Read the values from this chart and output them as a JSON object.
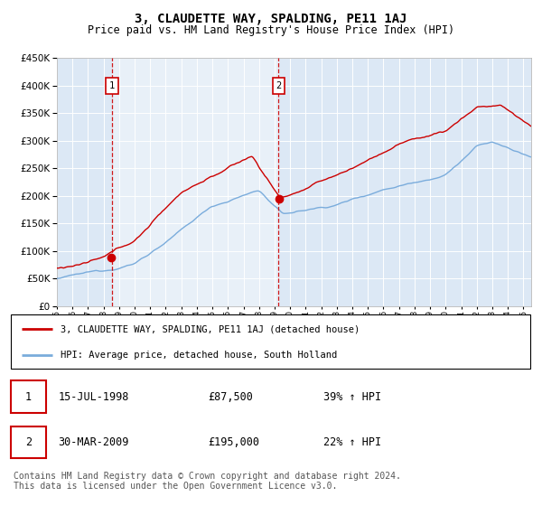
{
  "title": "3, CLAUDETTE WAY, SPALDING, PE11 1AJ",
  "subtitle": "Price paid vs. HM Land Registry's House Price Index (HPI)",
  "legend_line1": "3, CLAUDETTE WAY, SPALDING, PE11 1AJ (detached house)",
  "legend_line2": "HPI: Average price, detached house, South Holland",
  "sale1_date": "15-JUL-1998",
  "sale1_price": "£87,500",
  "sale1_hpi": "39% ↑ HPI",
  "sale1_year": 1998.54,
  "sale1_value": 87500,
  "sale2_date": "30-MAR-2009",
  "sale2_price": "£195,000",
  "sale2_hpi": "22% ↑ HPI",
  "sale2_year": 2009.25,
  "sale2_value": 195000,
  "footer": "Contains HM Land Registry data © Crown copyright and database right 2024.\nThis data is licensed under the Open Government Licence v3.0.",
  "ylim": [
    0,
    450000
  ],
  "yticks": [
    0,
    50000,
    100000,
    150000,
    200000,
    250000,
    300000,
    350000,
    400000,
    450000
  ],
  "red_color": "#cc0000",
  "blue_color": "#7aacdc",
  "shade_color": "#dce8f5",
  "bg_color": "#dce8f5",
  "grid_color": "#ffffff",
  "title_fontsize": 10,
  "subtitle_fontsize": 8.5,
  "axis_fontsize": 7,
  "legend_fontsize": 8,
  "footer_fontsize": 7
}
